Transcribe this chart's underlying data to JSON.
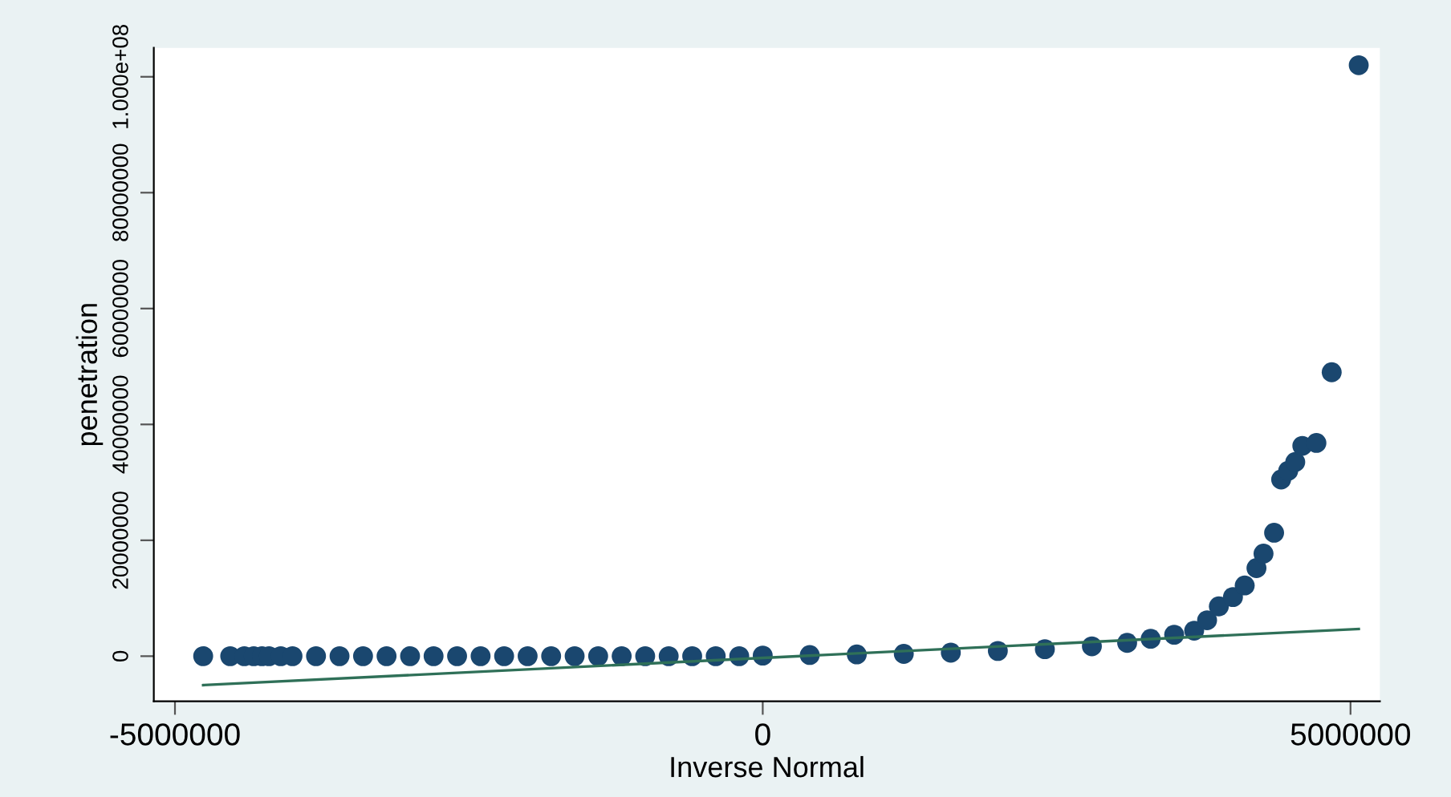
{
  "chart_data": {
    "type": "scatter",
    "xlabel": "Inverse Normal",
    "ylabel": "penetration",
    "xlim": [
      -5180000,
      5250000
    ],
    "ylim": [
      -7800000,
      105000000
    ],
    "xticks": [
      -5000000,
      0,
      5000000
    ],
    "yticks": [
      0,
      20000000,
      40000000,
      60000000,
      80000000,
      {
        "value": 100000000,
        "label": "1.000e+08"
      }
    ],
    "grid": false,
    "series": [
      {
        "color": "#1a476f",
        "marker": "circle",
        "x": [
          -4760000,
          -4530000,
          -4410000,
          -4330000,
          -4260000,
          -4200000,
          -4100000,
          -4000000,
          -3800000,
          -3600000,
          -3400000,
          -3200000,
          -3000000,
          -2800000,
          -2600000,
          -2400000,
          -2200000,
          -2000000,
          -1800000,
          -1600000,
          -1400000,
          -1200000,
          -1000000,
          -800000,
          -600000,
          -400000,
          -200000,
          0,
          400000,
          800000,
          1200000,
          1600000,
          2000000,
          2400000,
          2800000,
          3100000,
          3300000,
          3500000,
          3670000,
          3780000,
          3880000,
          4000000,
          4100000,
          4200000,
          4260000,
          4350000,
          4410000,
          4470000,
          4530000,
          4590000,
          4710000,
          4840000,
          5070000
        ],
        "values": [
          0,
          0,
          0,
          0,
          0,
          0,
          0,
          0,
          0,
          0,
          0,
          0,
          0,
          0,
          0,
          0,
          0,
          0,
          0,
          0,
          0,
          0,
          0,
          0,
          0,
          0,
          0,
          100000,
          200000,
          300000,
          400000,
          600000,
          900000,
          1200000,
          1700000,
          2300000,
          3000000,
          3700000,
          4400000,
          6200000,
          8600000,
          10200000,
          12200000,
          15200000,
          17700000,
          21300000,
          30500000,
          32000000,
          33500000,
          36300000,
          36800000,
          49000000,
          102000000
        ]
      },
      {
        "type": "line",
        "color": "#2f7058",
        "line_style": "solid",
        "marker": "none",
        "x": [
          -4760000,
          5070000
        ],
        "values": [
          -5000000,
          4700000
        ]
      }
    ]
  }
}
